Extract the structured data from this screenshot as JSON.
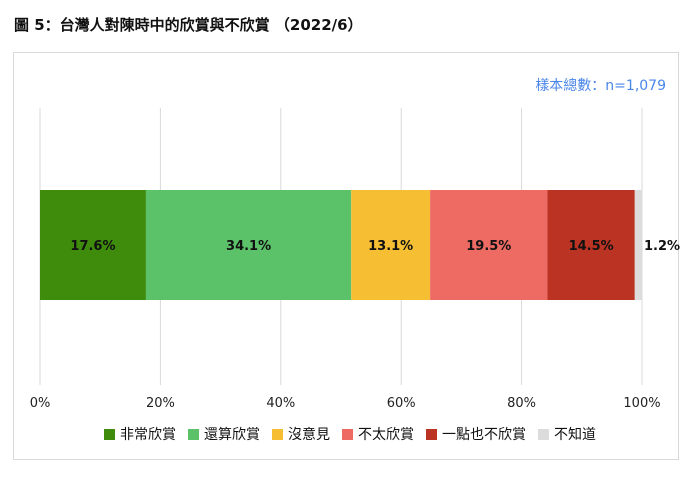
{
  "figure_title": "圖 5：台灣人對陳時中的欣賞與不欣賞 （2022/6）",
  "sample_note": "樣本總數：n=1,079",
  "chart_data": {
    "type": "bar",
    "orientation": "horizontal",
    "stacked": true,
    "title": "",
    "xlabel": "",
    "ylabel": "",
    "xlim": [
      0,
      100
    ],
    "x_ticks": [
      "0%",
      "20%",
      "40%",
      "60%",
      "80%",
      "100%"
    ],
    "grid": true,
    "legend_position": "bottom",
    "series": [
      {
        "name": "非常欣賞",
        "value": 17.6,
        "label": "17.6%",
        "color": "#3f8c0d"
      },
      {
        "name": "還算欣賞",
        "value": 34.1,
        "label": "34.1%",
        "color": "#5bc26a"
      },
      {
        "name": "沒意見",
        "value": 13.1,
        "label": "13.1%",
        "color": "#f6bf33"
      },
      {
        "name": "不太欣賞",
        "value": 19.5,
        "label": "19.5%",
        "color": "#ee6b64"
      },
      {
        "name": "一點也不欣賞",
        "value": 14.5,
        "label": "14.5%",
        "color": "#bb3323"
      },
      {
        "name": "不知道",
        "value": 1.2,
        "label": "1.2%",
        "color": "#dcdcdc"
      }
    ]
  }
}
